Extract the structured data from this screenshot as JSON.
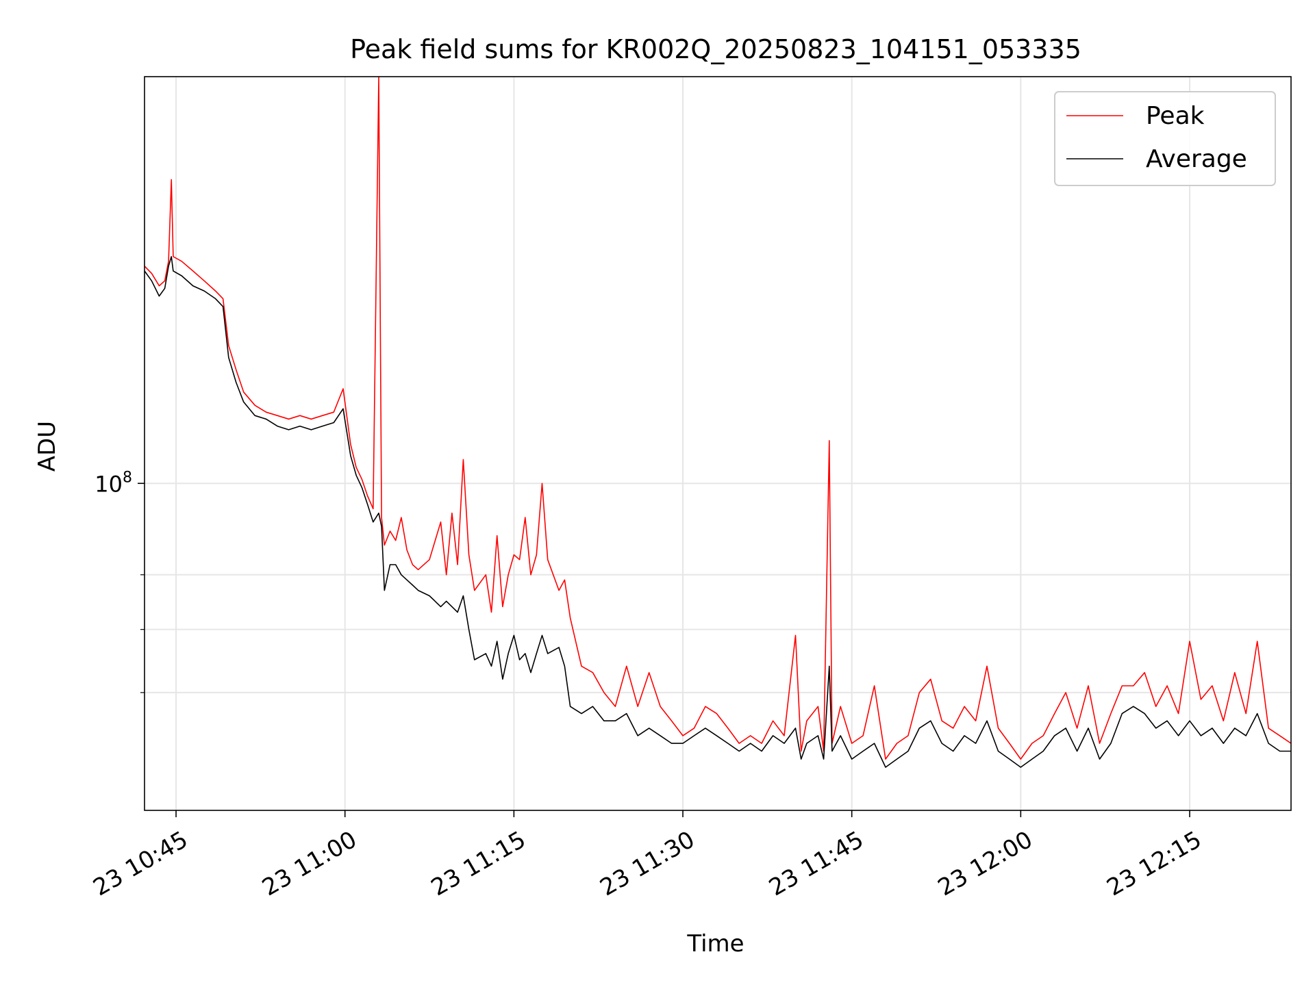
{
  "chart_data": {
    "type": "line",
    "title": "Peak field sums for KR002Q_20250823_104151_053335",
    "xlabel": "Time",
    "ylabel": "ADU",
    "x_axis": {
      "type": "time",
      "range": [
        "2025-08-23 10:42:12",
        "2025-08-23 12:24:00"
      ],
      "tick_labels": [
        "23 10:45",
        "23 11:00",
        "23 11:15",
        "23 11:30",
        "23 11:45",
        "23 12:00",
        "23 12:15"
      ],
      "tick_times": [
        "10:45",
        "11:00",
        "11:15",
        "11:30",
        "11:45",
        "12:00",
        "12:15"
      ]
    },
    "y_axis": {
      "scale": "log",
      "range": [
        45000000,
        270000000
      ],
      "major_tick_labels": [
        {
          "base": "10",
          "exp": "8",
          "value": 100000000
        }
      ],
      "minor_ticks": [
        60000000,
        70000000,
        80000000
      ]
    },
    "grid": true,
    "legend_position": "top-right",
    "colors": {
      "peak": "#ff0000",
      "average": "#000000",
      "grid": "#e6e6e6"
    },
    "series": [
      {
        "name": "Peak",
        "color": "#ff0000",
        "points": [
          [
            "10:42:12",
            170000000
          ],
          [
            "10:42:50",
            167000000
          ],
          [
            "10:43:30",
            162000000
          ],
          [
            "10:44:00",
            164000000
          ],
          [
            "10:44:20",
            172000000
          ],
          [
            "10:44:35",
            210000000
          ],
          [
            "10:44:45",
            174000000
          ],
          [
            "10:45:30",
            172000000
          ],
          [
            "10:46:30",
            168000000
          ],
          [
            "10:47:30",
            164000000
          ],
          [
            "10:48:30",
            160000000
          ],
          [
            "10:49:10",
            157000000
          ],
          [
            "10:49:40",
            140000000
          ],
          [
            "10:50:20",
            132000000
          ],
          [
            "10:51:00",
            125000000
          ],
          [
            "10:52:00",
            121000000
          ],
          [
            "10:53:00",
            119000000
          ],
          [
            "10:54:00",
            118000000
          ],
          [
            "10:55:00",
            117000000
          ],
          [
            "10:56:00",
            118000000
          ],
          [
            "10:57:00",
            117000000
          ],
          [
            "10:58:00",
            118000000
          ],
          [
            "10:59:00",
            119000000
          ],
          [
            "10:59:50",
            126000000
          ],
          [
            "11:00:30",
            110000000
          ],
          [
            "11:01:00",
            104000000
          ],
          [
            "11:01:30",
            101000000
          ],
          [
            "11:02:00",
            97000000
          ],
          [
            "11:02:30",
            94000000
          ],
          [
            "11:03:00",
            270000000
          ],
          [
            "11:03:15",
            92000000
          ],
          [
            "11:03:30",
            86000000
          ],
          [
            "11:04:00",
            89000000
          ],
          [
            "11:04:30",
            87000000
          ],
          [
            "11:05:00",
            92000000
          ],
          [
            "11:05:30",
            85000000
          ],
          [
            "11:06:00",
            82000000
          ],
          [
            "11:06:30",
            81000000
          ],
          [
            "11:07:30",
            83000000
          ],
          [
            "11:08:30",
            91000000
          ],
          [
            "11:09:00",
            80000000
          ],
          [
            "11:09:30",
            93000000
          ],
          [
            "11:10:00",
            82000000
          ],
          [
            "11:10:30",
            106000000
          ],
          [
            "11:11:00",
            84000000
          ],
          [
            "11:11:30",
            77000000
          ],
          [
            "11:12:30",
            80000000
          ],
          [
            "11:13:00",
            73000000
          ],
          [
            "11:13:30",
            88000000
          ],
          [
            "11:14:00",
            74000000
          ],
          [
            "11:14:30",
            80000000
          ],
          [
            "11:15:00",
            84000000
          ],
          [
            "11:15:30",
            83000000
          ],
          [
            "11:16:00",
            92000000
          ],
          [
            "11:16:30",
            80000000
          ],
          [
            "11:17:00",
            84000000
          ],
          [
            "11:17:30",
            100000000
          ],
          [
            "11:18:00",
            83000000
          ],
          [
            "11:19:00",
            77000000
          ],
          [
            "11:19:30",
            79000000
          ],
          [
            "11:20:00",
            72000000
          ],
          [
            "11:21:00",
            64000000
          ],
          [
            "11:22:00",
            63000000
          ],
          [
            "11:23:00",
            60000000
          ],
          [
            "11:24:00",
            58000000
          ],
          [
            "11:25:00",
            64000000
          ],
          [
            "11:26:00",
            58000000
          ],
          [
            "11:27:00",
            63000000
          ],
          [
            "11:28:00",
            58000000
          ],
          [
            "11:29:00",
            56000000
          ],
          [
            "11:30:00",
            54000000
          ],
          [
            "11:31:00",
            55000000
          ],
          [
            "11:32:00",
            58000000
          ],
          [
            "11:33:00",
            57000000
          ],
          [
            "11:34:00",
            55000000
          ],
          [
            "11:35:00",
            53000000
          ],
          [
            "11:36:00",
            54000000
          ],
          [
            "11:37:00",
            53000000
          ],
          [
            "11:38:00",
            56000000
          ],
          [
            "11:39:00",
            54000000
          ],
          [
            "11:40:00",
            69000000
          ],
          [
            "11:40:30",
            52000000
          ],
          [
            "11:41:00",
            56000000
          ],
          [
            "11:42:00",
            58000000
          ],
          [
            "11:42:30",
            52000000
          ],
          [
            "11:43:00",
            111000000
          ],
          [
            "11:43:15",
            53000000
          ],
          [
            "11:44:00",
            58000000
          ],
          [
            "11:45:00",
            53000000
          ],
          [
            "11:46:00",
            54000000
          ],
          [
            "11:47:00",
            61000000
          ],
          [
            "11:48:00",
            51000000
          ],
          [
            "11:49:00",
            53000000
          ],
          [
            "11:50:00",
            54000000
          ],
          [
            "11:51:00",
            60000000
          ],
          [
            "11:52:00",
            62000000
          ],
          [
            "11:53:00",
            56000000
          ],
          [
            "11:54:00",
            55000000
          ],
          [
            "11:55:00",
            58000000
          ],
          [
            "11:56:00",
            56000000
          ],
          [
            "11:57:00",
            64000000
          ],
          [
            "11:58:00",
            55000000
          ],
          [
            "11:59:00",
            53000000
          ],
          [
            "12:00:00",
            51000000
          ],
          [
            "12:01:00",
            53000000
          ],
          [
            "12:02:00",
            54000000
          ],
          [
            "12:03:00",
            57000000
          ],
          [
            "12:04:00",
            60000000
          ],
          [
            "12:05:00",
            55000000
          ],
          [
            "12:06:00",
            61000000
          ],
          [
            "12:07:00",
            53000000
          ],
          [
            "12:08:00",
            57000000
          ],
          [
            "12:09:00",
            61000000
          ],
          [
            "12:10:00",
            61000000
          ],
          [
            "12:11:00",
            63000000
          ],
          [
            "12:12:00",
            58000000
          ],
          [
            "12:13:00",
            61000000
          ],
          [
            "12:14:00",
            57000000
          ],
          [
            "12:15:00",
            68000000
          ],
          [
            "12:16:00",
            59000000
          ],
          [
            "12:17:00",
            61000000
          ],
          [
            "12:18:00",
            56000000
          ],
          [
            "12:19:00",
            63000000
          ],
          [
            "12:20:00",
            57000000
          ],
          [
            "12:21:00",
            68000000
          ],
          [
            "12:22:00",
            55000000
          ],
          [
            "12:23:00",
            54000000
          ],
          [
            "12:24:00",
            53000000
          ]
        ]
      },
      {
        "name": "Average",
        "color": "#000000",
        "points": [
          [
            "10:42:12",
            168000000
          ],
          [
            "10:42:50",
            164000000
          ],
          [
            "10:43:30",
            158000000
          ],
          [
            "10:44:00",
            161000000
          ],
          [
            "10:44:20",
            170000000
          ],
          [
            "10:44:35",
            174000000
          ],
          [
            "10:44:45",
            168000000
          ],
          [
            "10:45:30",
            166000000
          ],
          [
            "10:46:30",
            162000000
          ],
          [
            "10:47:30",
            160000000
          ],
          [
            "10:48:30",
            157000000
          ],
          [
            "10:49:10",
            154000000
          ],
          [
            "10:49:40",
            136000000
          ],
          [
            "10:50:20",
            128000000
          ],
          [
            "10:51:00",
            122000000
          ],
          [
            "10:52:00",
            118000000
          ],
          [
            "10:53:00",
            117000000
          ],
          [
            "10:54:00",
            115000000
          ],
          [
            "10:55:00",
            114000000
          ],
          [
            "10:56:00",
            115000000
          ],
          [
            "10:57:00",
            114000000
          ],
          [
            "10:58:00",
            115000000
          ],
          [
            "10:59:00",
            116000000
          ],
          [
            "10:59:50",
            120000000
          ],
          [
            "11:00:30",
            107000000
          ],
          [
            "11:01:00",
            102000000
          ],
          [
            "11:01:30",
            99000000
          ],
          [
            "11:02:00",
            95000000
          ],
          [
            "11:02:30",
            91000000
          ],
          [
            "11:03:00",
            93000000
          ],
          [
            "11:03:15",
            90000000
          ],
          [
            "11:03:30",
            77000000
          ],
          [
            "11:04:00",
            82000000
          ],
          [
            "11:04:30",
            82000000
          ],
          [
            "11:05:00",
            80000000
          ],
          [
            "11:05:30",
            79000000
          ],
          [
            "11:06:00",
            78000000
          ],
          [
            "11:06:30",
            77000000
          ],
          [
            "11:07:30",
            76000000
          ],
          [
            "11:08:30",
            74000000
          ],
          [
            "11:09:00",
            75000000
          ],
          [
            "11:09:30",
            74000000
          ],
          [
            "11:10:00",
            73000000
          ],
          [
            "11:10:30",
            76000000
          ],
          [
            "11:11:00",
            70000000
          ],
          [
            "11:11:30",
            65000000
          ],
          [
            "11:12:30",
            66000000
          ],
          [
            "11:13:00",
            64000000
          ],
          [
            "11:13:30",
            68000000
          ],
          [
            "11:14:00",
            62000000
          ],
          [
            "11:14:30",
            66000000
          ],
          [
            "11:15:00",
            69000000
          ],
          [
            "11:15:30",
            65000000
          ],
          [
            "11:16:00",
            66000000
          ],
          [
            "11:16:30",
            63000000
          ],
          [
            "11:17:00",
            66000000
          ],
          [
            "11:17:30",
            69000000
          ],
          [
            "11:18:00",
            66000000
          ],
          [
            "11:19:00",
            67000000
          ],
          [
            "11:19:30",
            64000000
          ],
          [
            "11:20:00",
            58000000
          ],
          [
            "11:21:00",
            57000000
          ],
          [
            "11:22:00",
            58000000
          ],
          [
            "11:23:00",
            56000000
          ],
          [
            "11:24:00",
            56000000
          ],
          [
            "11:25:00",
            57000000
          ],
          [
            "11:26:00",
            54000000
          ],
          [
            "11:27:00",
            55000000
          ],
          [
            "11:28:00",
            54000000
          ],
          [
            "11:29:00",
            53000000
          ],
          [
            "11:30:00",
            53000000
          ],
          [
            "11:31:00",
            54000000
          ],
          [
            "11:32:00",
            55000000
          ],
          [
            "11:33:00",
            54000000
          ],
          [
            "11:34:00",
            53000000
          ],
          [
            "11:35:00",
            52000000
          ],
          [
            "11:36:00",
            53000000
          ],
          [
            "11:37:00",
            52000000
          ],
          [
            "11:38:00",
            54000000
          ],
          [
            "11:39:00",
            53000000
          ],
          [
            "11:40:00",
            55000000
          ],
          [
            "11:40:30",
            51000000
          ],
          [
            "11:41:00",
            53000000
          ],
          [
            "11:42:00",
            54000000
          ],
          [
            "11:42:30",
            51000000
          ],
          [
            "11:43:00",
            64000000
          ],
          [
            "11:43:15",
            52000000
          ],
          [
            "11:44:00",
            54000000
          ],
          [
            "11:45:00",
            51000000
          ],
          [
            "11:46:00",
            52000000
          ],
          [
            "11:47:00",
            53000000
          ],
          [
            "11:48:00",
            50000000
          ],
          [
            "11:49:00",
            51000000
          ],
          [
            "11:50:00",
            52000000
          ],
          [
            "11:51:00",
            55000000
          ],
          [
            "11:52:00",
            56000000
          ],
          [
            "11:53:00",
            53000000
          ],
          [
            "11:54:00",
            52000000
          ],
          [
            "11:55:00",
            54000000
          ],
          [
            "11:56:00",
            53000000
          ],
          [
            "11:57:00",
            56000000
          ],
          [
            "11:58:00",
            52000000
          ],
          [
            "11:59:00",
            51000000
          ],
          [
            "12:00:00",
            50000000
          ],
          [
            "12:01:00",
            51000000
          ],
          [
            "12:02:00",
            52000000
          ],
          [
            "12:03:00",
            54000000
          ],
          [
            "12:04:00",
            55000000
          ],
          [
            "12:05:00",
            52000000
          ],
          [
            "12:06:00",
            55000000
          ],
          [
            "12:07:00",
            51000000
          ],
          [
            "12:08:00",
            53000000
          ],
          [
            "12:09:00",
            57000000
          ],
          [
            "12:10:00",
            58000000
          ],
          [
            "12:11:00",
            57000000
          ],
          [
            "12:12:00",
            55000000
          ],
          [
            "12:13:00",
            56000000
          ],
          [
            "12:14:00",
            54000000
          ],
          [
            "12:15:00",
            56000000
          ],
          [
            "12:16:00",
            54000000
          ],
          [
            "12:17:00",
            55000000
          ],
          [
            "12:18:00",
            53000000
          ],
          [
            "12:19:00",
            55000000
          ],
          [
            "12:20:00",
            54000000
          ],
          [
            "12:21:00",
            57000000
          ],
          [
            "12:22:00",
            53000000
          ],
          [
            "12:23:00",
            52000000
          ],
          [
            "12:24:00",
            52000000
          ]
        ]
      }
    ]
  }
}
